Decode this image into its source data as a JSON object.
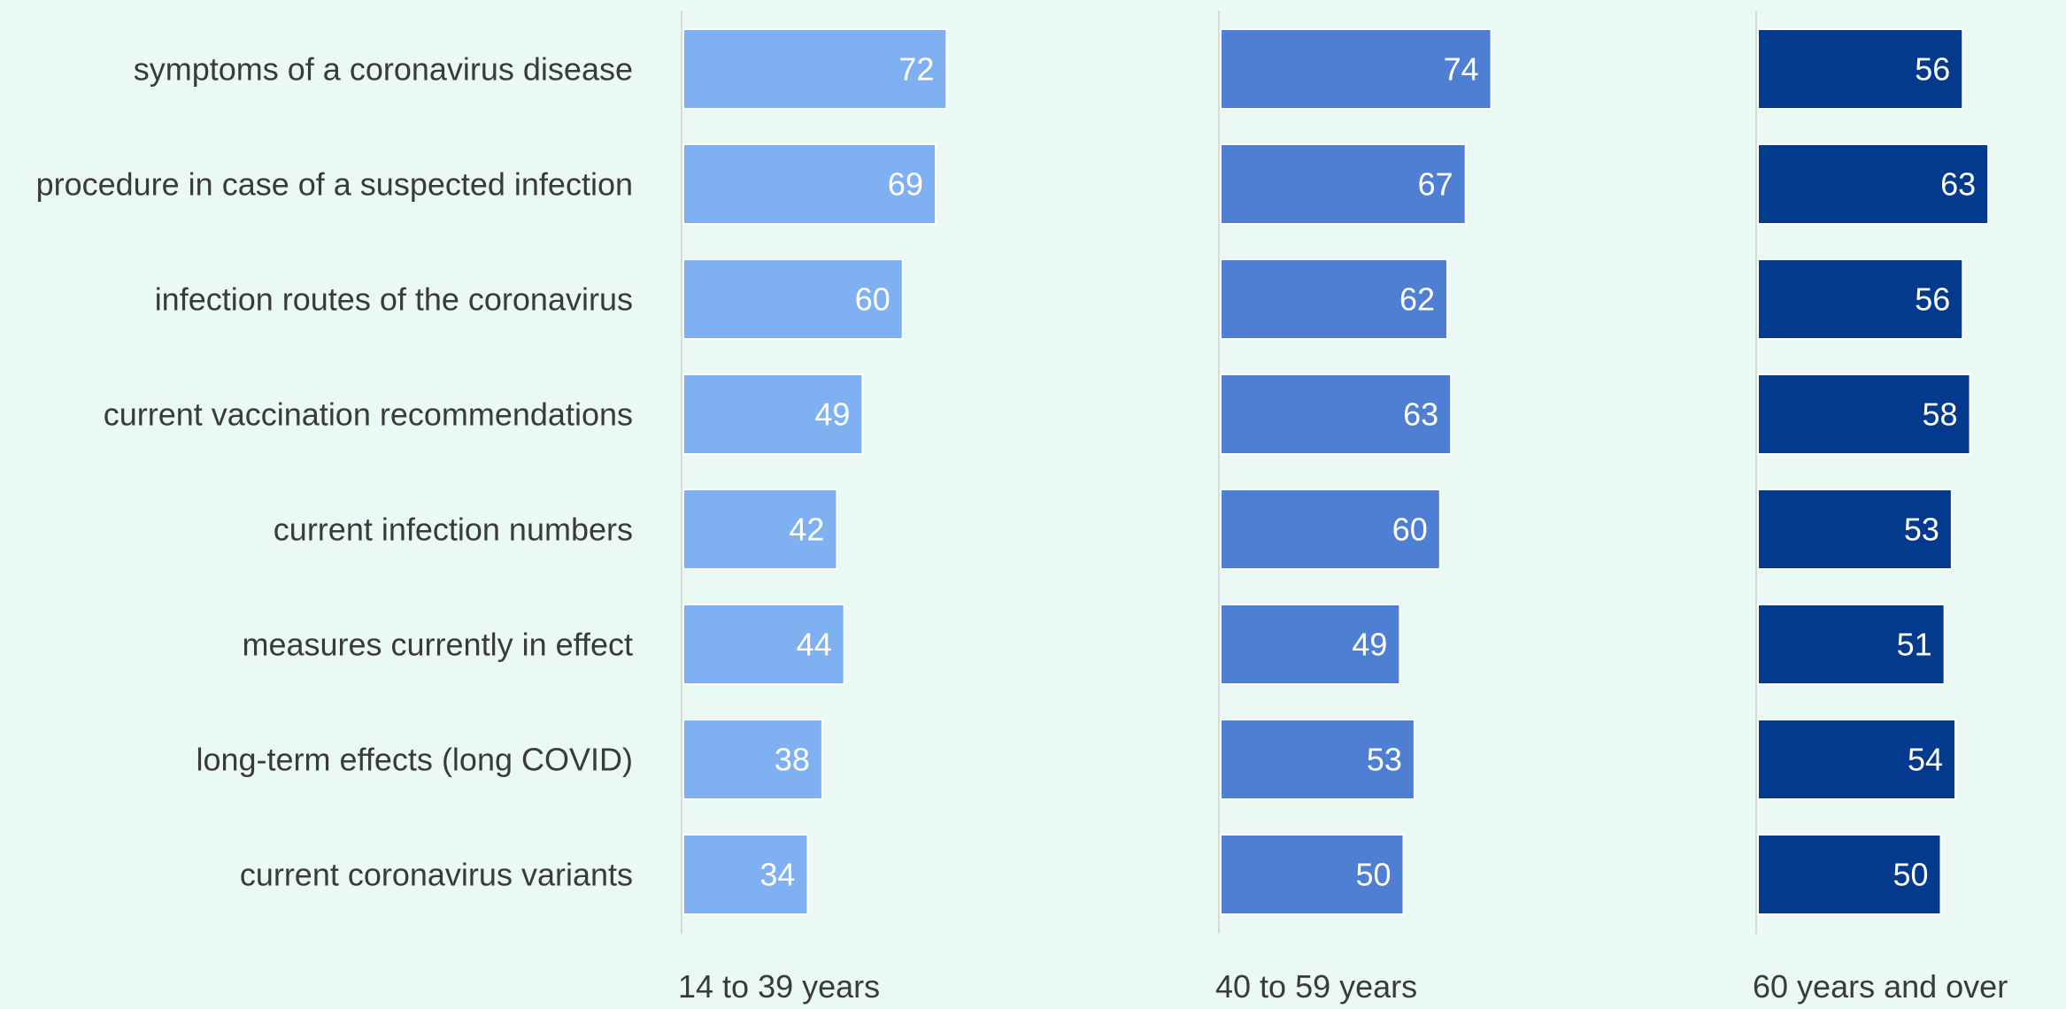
{
  "chart_data": {
    "type": "bar",
    "orientation": "horizontal",
    "layout": "small-multiples",
    "categories": [
      "symptoms of a coronavirus disease",
      "procedure in case of a suspected infection",
      "infection routes of the coronavirus",
      "current vaccination recommendations",
      "current infection numbers",
      "measures currently in effect",
      "long-term effects (long COVID)",
      "current coronavirus variants"
    ],
    "series": [
      {
        "name": "14 to 39 years",
        "color": "#7fb1f2",
        "values": [
          72,
          69,
          60,
          49,
          42,
          44,
          38,
          34
        ]
      },
      {
        "name": "40 to 59 years",
        "color": "#4f7fd3",
        "values": [
          74,
          67,
          62,
          63,
          60,
          49,
          53,
          50
        ]
      },
      {
        "name": "60 years and over",
        "color": "#043a8e",
        "values": [
          56,
          63,
          56,
          58,
          53,
          51,
          54,
          50
        ]
      }
    ],
    "xlim": [
      0,
      100
    ],
    "data_labels": true,
    "grid": false,
    "legend": "none",
    "title": "",
    "xlabel": "",
    "ylabel": ""
  },
  "colors": {
    "background": "#ebf9f4",
    "text": "#3a3a3a",
    "data_label": "#ffffff",
    "axis_line": "#d4dbd8"
  }
}
